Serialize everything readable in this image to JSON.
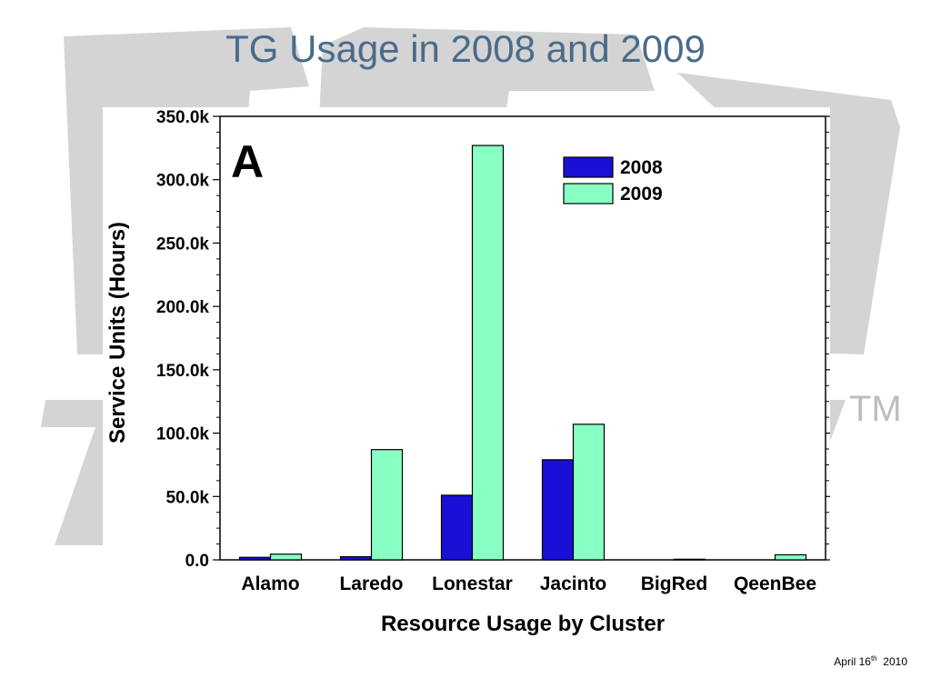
{
  "slide": {
    "title": "TG Usage in 2008 and 2009",
    "trademark": "TM",
    "footer_date_prefix": "April 16",
    "footer_date_sup": "th",
    "footer_date_suffix": "  2010"
  },
  "colors": {
    "series_2008": "#1a0fd4",
    "series_2009": "#88ffc3",
    "title": "#4a6b8a",
    "watermark": "#d4d4d4"
  },
  "chart_data": {
    "type": "bar",
    "panel_label": "A",
    "categories": [
      "Alamo",
      "Laredo",
      "Lonestar",
      "Jacinto",
      "BigRed",
      "QeenBee"
    ],
    "series": [
      {
        "name": "2008",
        "values": [
          2000,
          2500,
          51000,
          79000,
          0,
          0
        ]
      },
      {
        "name": "2009",
        "values": [
          4500,
          87000,
          327000,
          107000,
          500,
          4000
        ]
      }
    ],
    "xlabel": "Resource Usage by Cluster",
    "ylabel": "Service Units (Hours)",
    "ylim": [
      0,
      350000
    ],
    "yticks": [
      0,
      50000,
      100000,
      150000,
      200000,
      250000,
      300000,
      350000
    ],
    "ytick_labels": [
      "0.0",
      "50.0k",
      "100.0k",
      "150.0k",
      "200.0k",
      "250.0k",
      "300.0k",
      "350.0k"
    ],
    "legend_position": "top-right",
    "grid": false
  }
}
